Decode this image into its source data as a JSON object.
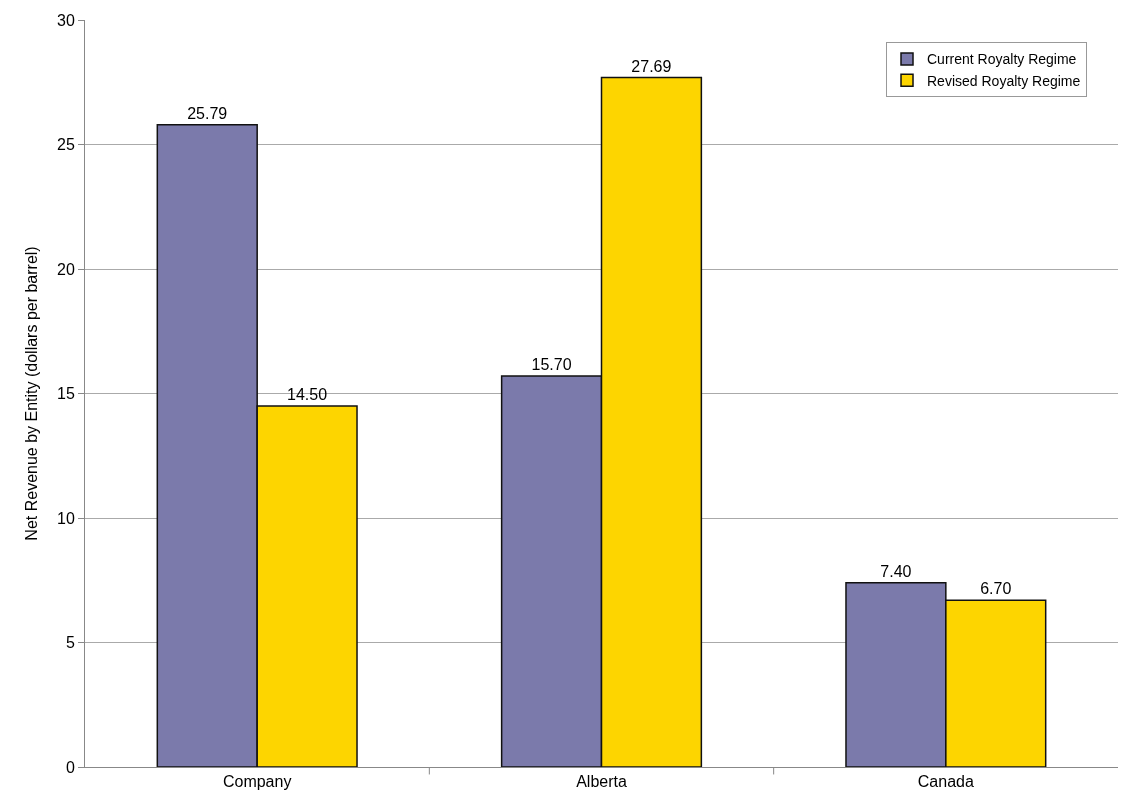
{
  "chart_data": {
    "type": "bar",
    "ylabel": "Net Revenue by Entity (dollars per barrel)",
    "categories": [
      "Company",
      "Alberta",
      "Canada"
    ],
    "series": [
      {
        "name": "Current Royalty Regime",
        "color": "#7b7aab",
        "values": [
          25.79,
          15.7,
          7.4
        ],
        "value_labels": [
          "25.79",
          "15.70",
          "7.40"
        ]
      },
      {
        "name": "Revised Royalty Regime",
        "color": "#fdd500",
        "values": [
          14.5,
          27.69,
          6.7
        ],
        "value_labels": [
          "14.50",
          "27.69",
          "6.70"
        ]
      }
    ],
    "ylim": [
      0,
      30
    ],
    "yticks": [
      0,
      5,
      10,
      15,
      20,
      25,
      30
    ],
    "grid": "y",
    "legend": "top right"
  }
}
